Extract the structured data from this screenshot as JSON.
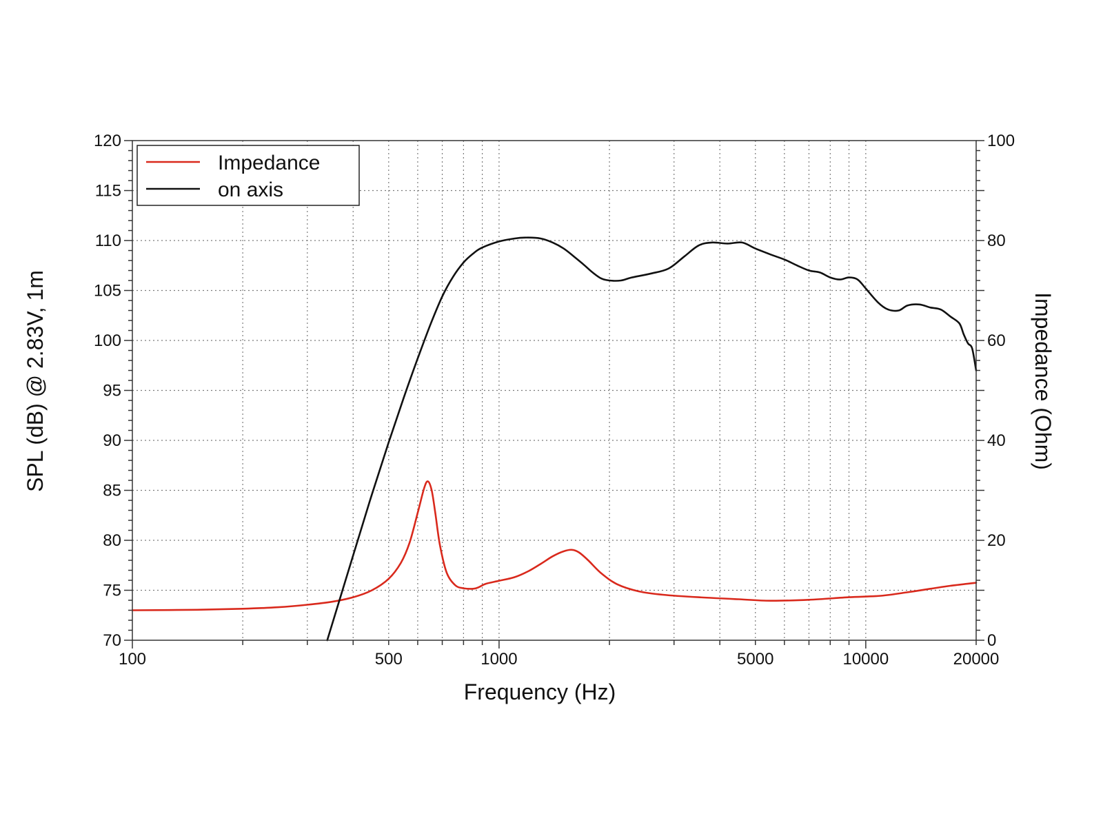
{
  "chart_data": {
    "type": "line",
    "title": "",
    "xlabel": "Frequency (Hz)",
    "ylabel": "SPL (dB) @ 2.83V, 1m",
    "ylabel_right": "Impedance (Ohm)",
    "x_scale": "log",
    "xlim": [
      100,
      20000
    ],
    "ylim": [
      70,
      120
    ],
    "ylim_right": [
      0,
      100
    ],
    "grid": true,
    "legend_position": "top-left",
    "x_tick_labels": [
      {
        "value": 100,
        "label": "100"
      },
      {
        "value": 500,
        "label": "500"
      },
      {
        "value": 1000,
        "label": "1000"
      },
      {
        "value": 5000,
        "label": "5000"
      },
      {
        "value": 10000,
        "label": "10000"
      },
      {
        "value": 20000,
        "label": "20000"
      }
    ],
    "y_tick_labels": [
      {
        "value": 70,
        "label": "70"
      },
      {
        "value": 75,
        "label": "75"
      },
      {
        "value": 80,
        "label": "80"
      },
      {
        "value": 85,
        "label": "85"
      },
      {
        "value": 90,
        "label": "90"
      },
      {
        "value": 95,
        "label": "95"
      },
      {
        "value": 100,
        "label": "100"
      },
      {
        "value": 105,
        "label": "105"
      },
      {
        "value": 110,
        "label": "110"
      },
      {
        "value": 115,
        "label": "115"
      },
      {
        "value": 120,
        "label": "120"
      }
    ],
    "y_right_tick_labels": [
      {
        "value": 0,
        "label": "0"
      },
      {
        "value": 20,
        "label": "20"
      },
      {
        "value": 40,
        "label": "40"
      },
      {
        "value": 60,
        "label": "60"
      },
      {
        "value": 80,
        "label": "80"
      },
      {
        "value": 100,
        "label": "100"
      }
    ],
    "series": [
      {
        "name": "Impedance",
        "color": "#d9291c",
        "axis": "right",
        "points": [
          [
            100,
            6.0
          ],
          [
            150,
            6.1
          ],
          [
            200,
            6.3
          ],
          [
            250,
            6.6
          ],
          [
            300,
            7.1
          ],
          [
            350,
            7.7
          ],
          [
            400,
            8.6
          ],
          [
            450,
            10.0
          ],
          [
            500,
            12.3
          ],
          [
            540,
            15.5
          ],
          [
            570,
            19.5
          ],
          [
            600,
            25.5
          ],
          [
            625,
            30.5
          ],
          [
            640,
            31.8
          ],
          [
            655,
            30.0
          ],
          [
            670,
            25.5
          ],
          [
            690,
            19.0
          ],
          [
            720,
            13.5
          ],
          [
            760,
            11.0
          ],
          [
            800,
            10.4
          ],
          [
            850,
            10.3
          ],
          [
            880,
            10.6
          ],
          [
            920,
            11.3
          ],
          [
            1000,
            11.9
          ],
          [
            1100,
            12.6
          ],
          [
            1200,
            13.8
          ],
          [
            1300,
            15.3
          ],
          [
            1400,
            16.8
          ],
          [
            1500,
            17.8
          ],
          [
            1580,
            18.1
          ],
          [
            1650,
            17.6
          ],
          [
            1750,
            16.0
          ],
          [
            1900,
            13.4
          ],
          [
            2100,
            11.2
          ],
          [
            2400,
            9.8
          ],
          [
            2800,
            9.1
          ],
          [
            3500,
            8.6
          ],
          [
            4500,
            8.2
          ],
          [
            5500,
            7.9
          ],
          [
            7000,
            8.1
          ],
          [
            9000,
            8.6
          ],
          [
            11000,
            8.9
          ],
          [
            13000,
            9.6
          ],
          [
            15000,
            10.3
          ],
          [
            17000,
            10.9
          ],
          [
            20000,
            11.5
          ]
        ]
      },
      {
        "name": "on axis",
        "color": "#111111",
        "axis": "left",
        "points": [
          [
            340,
            70.0
          ],
          [
            400,
            78.5
          ],
          [
            450,
            84.6
          ],
          [
            500,
            89.8
          ],
          [
            550,
            94.3
          ],
          [
            600,
            98.2
          ],
          [
            650,
            101.6
          ],
          [
            700,
            104.4
          ],
          [
            750,
            106.4
          ],
          [
            800,
            107.8
          ],
          [
            850,
            108.7
          ],
          [
            900,
            109.3
          ],
          [
            1000,
            109.9
          ],
          [
            1100,
            110.2
          ],
          [
            1200,
            110.3
          ],
          [
            1300,
            110.2
          ],
          [
            1400,
            109.8
          ],
          [
            1500,
            109.2
          ],
          [
            1600,
            108.4
          ],
          [
            1700,
            107.6
          ],
          [
            1800,
            106.8
          ],
          [
            1900,
            106.2
          ],
          [
            2000,
            106.0
          ],
          [
            2150,
            106.0
          ],
          [
            2300,
            106.3
          ],
          [
            2600,
            106.7
          ],
          [
            2900,
            107.2
          ],
          [
            3200,
            108.4
          ],
          [
            3500,
            109.5
          ],
          [
            3800,
            109.8
          ],
          [
            4200,
            109.7
          ],
          [
            4600,
            109.8
          ],
          [
            5000,
            109.2
          ],
          [
            5500,
            108.6
          ],
          [
            6000,
            108.1
          ],
          [
            6500,
            107.5
          ],
          [
            7000,
            107.0
          ],
          [
            7500,
            106.8
          ],
          [
            8000,
            106.3
          ],
          [
            8500,
            106.1
          ],
          [
            9000,
            106.3
          ],
          [
            9500,
            106.1
          ],
          [
            10000,
            105.2
          ],
          [
            10800,
            103.8
          ],
          [
            11500,
            103.1
          ],
          [
            12300,
            103.0
          ],
          [
            13000,
            103.5
          ],
          [
            14000,
            103.6
          ],
          [
            15000,
            103.3
          ],
          [
            16000,
            103.1
          ],
          [
            17000,
            102.4
          ],
          [
            18000,
            101.7
          ],
          [
            18500,
            100.6
          ],
          [
            19000,
            99.7
          ],
          [
            19500,
            99.2
          ],
          [
            20000,
            97.0
          ]
        ]
      }
    ]
  }
}
